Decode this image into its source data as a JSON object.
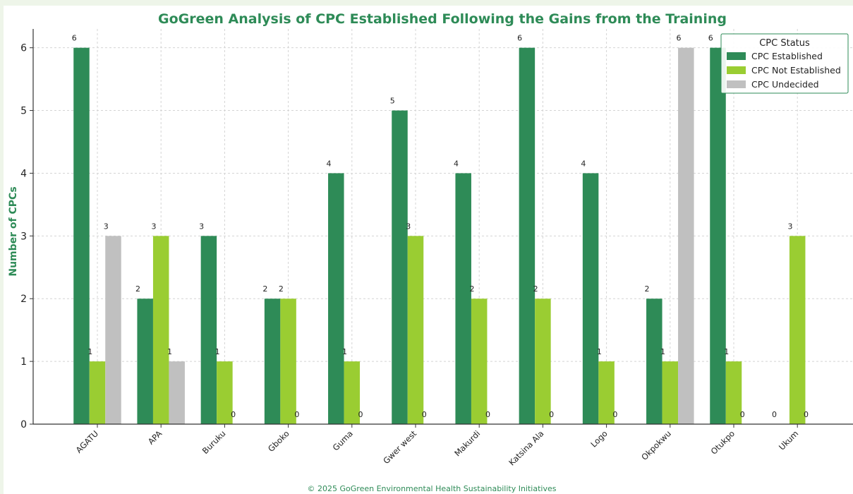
{
  "chart_data": {
    "type": "bar",
    "title": "GoGreen Analysis of CPC Established Following the Gains from the Training",
    "xlabel": "",
    "ylabel": "Number of CPCs",
    "ylim": [
      0,
      6.3
    ],
    "yticks": [
      0,
      1,
      2,
      3,
      4,
      5,
      6
    ],
    "grid": true,
    "legend": {
      "title": "CPC Status",
      "placement": "top-right"
    },
    "categories": [
      "AGATU",
      "APA",
      "Buruku",
      "Gboko",
      "Guma",
      "Gwer west",
      "Makurdi",
      "Katsina Ala",
      "Logo",
      "Okpokwu",
      "Otukpo",
      "Ukum"
    ],
    "series": [
      {
        "name": "CPC Established",
        "color": "#2e8b57",
        "values": [
          6,
          2,
          3,
          2,
          4,
          5,
          4,
          6,
          4,
          2,
          6,
          0
        ]
      },
      {
        "name": "CPC Not Established",
        "color": "#9acd32",
        "values": [
          1,
          3,
          1,
          2,
          1,
          3,
          2,
          2,
          1,
          1,
          1,
          3
        ]
      },
      {
        "name": "CPC Undecided",
        "color": "#c0c0c0",
        "values": [
          3,
          1,
          0,
          0,
          0,
          0,
          0,
          0,
          0,
          6,
          0,
          0
        ]
      }
    ]
  },
  "footer": "© 2025 GoGreen Environmental Health Sustainability Initiatives"
}
